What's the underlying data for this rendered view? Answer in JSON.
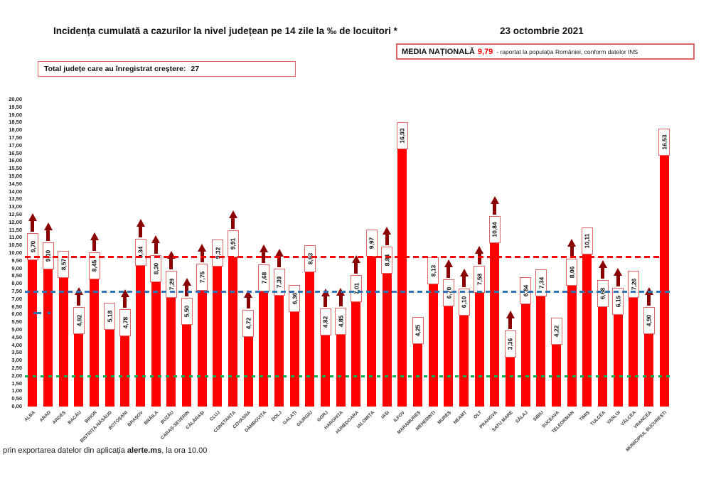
{
  "header": {
    "title": "Incidența cumulată a cazurilor la nivel județean pe 14 zile la ‰ de locuitori *",
    "date": "23 octombrie 2021",
    "media_box": {
      "label": "MEDIA NAȚIONALĂ",
      "value": "9,79",
      "note": "-  raportat la populația României, conform datelor INS"
    },
    "total_box": {
      "label": "Total județe care au înregistrat creștere:",
      "value": "27"
    }
  },
  "footer": {
    "prefix": "prin exportarea datelor din aplicația ",
    "app_name": "alerte.ms",
    "suffix": ", la ora 10.00"
  },
  "chart_data": {
    "type": "bar",
    "title": "Incidența cumulată a cazurilor la nivel județean pe 14 zile la ‰ de locuitori",
    "unit": "‰",
    "categories": [
      "ALBA",
      "ARAD",
      "ARGEȘ",
      "BACĂU",
      "BIHOR",
      "BISTRIȚA-NĂSĂUD",
      "BOTOȘANI",
      "BRAȘOV",
      "BRĂILA",
      "BUZĂU",
      "CARAȘ-SEVERIN",
      "CĂLĂRAȘI",
      "CLUJ",
      "CONSTANȚA",
      "COVASNA",
      "DÂMBOVIȚA",
      "DOLJ",
      "GALAȚI",
      "GIURGIU",
      "GORJ",
      "HARGHITA",
      "HUNEDOARA",
      "IALOMIȚA",
      "IAȘI",
      "ILFOV",
      "MARAMUREȘ",
      "MEHEDINȚI",
      "MUREȘ",
      "NEAMȚ",
      "OLT",
      "PRAHOVA",
      "SATU MARE",
      "SĂLAJ",
      "SIBIU",
      "SUCEAVA",
      "TELEORMAN",
      "TIMIȘ",
      "TULCEA",
      "VASLUI",
      "VÂLCEA",
      "VRANCEA",
      "MUNICIPIUL BUCUREȘTI"
    ],
    "values": [
      9.7,
      9.1,
      8.57,
      4.92,
      8.45,
      5.18,
      4.78,
      9.34,
      8.3,
      7.29,
      5.5,
      7.75,
      9.32,
      9.91,
      4.72,
      7.68,
      7.39,
      6.36,
      8.93,
      4.82,
      4.85,
      7.01,
      9.97,
      8.84,
      16.93,
      4.25,
      8.13,
      6.7,
      6.1,
      7.58,
      10.84,
      3.36,
      6.84,
      7.34,
      4.22,
      8.06,
      10.11,
      6.68,
      6.15,
      7.26,
      4.9,
      16.53
    ],
    "increase": [
      true,
      true,
      false,
      true,
      true,
      false,
      true,
      true,
      true,
      true,
      true,
      true,
      false,
      true,
      true,
      true,
      true,
      false,
      false,
      true,
      true,
      true,
      false,
      true,
      false,
      false,
      false,
      true,
      true,
      true,
      true,
      true,
      false,
      false,
      false,
      true,
      false,
      true,
      true,
      false,
      true,
      false
    ],
    "increase_count": 27,
    "ylim": [
      0,
      20
    ],
    "ytick_step": 0.5,
    "grid": false,
    "legend": "none",
    "bar_color": "#FF0000",
    "arrow_color": "#8B0000",
    "label_box_border_color": "#E06666",
    "reference_lines": [
      {
        "name": "media-nationala",
        "value": 9.79,
        "color": "#FF0000",
        "style": "dashed"
      },
      {
        "name": "blue-reference",
        "value": 7.5,
        "color": "#2E74B5",
        "style": "dashed"
      },
      {
        "name": "green-reference",
        "value": 2.0,
        "color": "#00B050",
        "style": "dashed"
      }
    ]
  }
}
